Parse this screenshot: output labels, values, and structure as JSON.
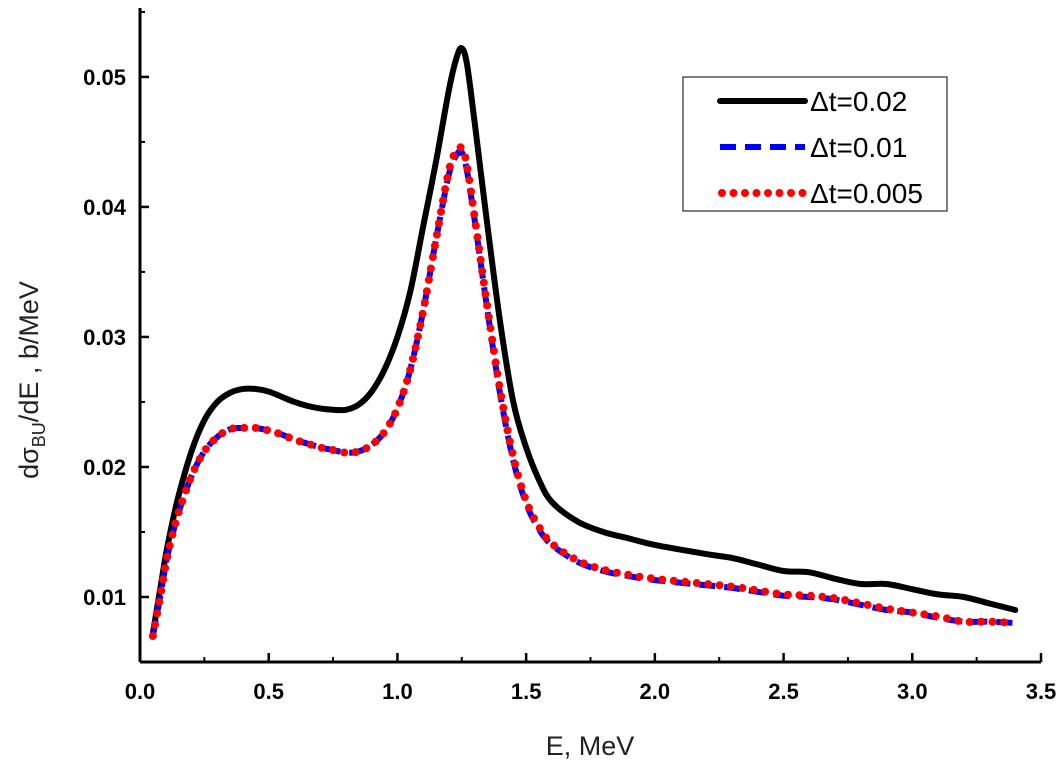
{
  "chart_data": {
    "type": "line",
    "xlabel": "E, MeV",
    "ylabel": {
      "main": "dσ",
      "sub": "BU",
      "rest": "/dE , b/MeV"
    },
    "xlim": [
      0.0,
      3.5
    ],
    "ylim": [
      0.005,
      0.0553
    ],
    "x_ticks": [
      "0.0",
      "0.5",
      "1.0",
      "1.5",
      "2.0",
      "2.5",
      "3.0",
      "3.5"
    ],
    "y_ticks": [
      "0.01",
      "0.02",
      "0.03",
      "0.04",
      "0.05"
    ],
    "grid": false,
    "legend_position": "top-right",
    "series": [
      {
        "name": "Δt=0.02",
        "style": "solid",
        "color": "#000000",
        "x": [
          0.05,
          0.08,
          0.1,
          0.12,
          0.15,
          0.2,
          0.25,
          0.3,
          0.35,
          0.4,
          0.45,
          0.5,
          0.55,
          0.6,
          0.65,
          0.7,
          0.75,
          0.8,
          0.85,
          0.9,
          0.95,
          1.0,
          1.05,
          1.1,
          1.15,
          1.2,
          1.23,
          1.25,
          1.27,
          1.3,
          1.35,
          1.4,
          1.45,
          1.5,
          1.55,
          1.6,
          1.7,
          1.8,
          1.9,
          2.0,
          2.2,
          2.3,
          2.4,
          2.5,
          2.6,
          2.7,
          2.8,
          2.9,
          3.0,
          3.1,
          3.2,
          3.3,
          3.4
        ],
        "y": [
          0.0072,
          0.0108,
          0.0132,
          0.0152,
          0.0178,
          0.0212,
          0.0236,
          0.025,
          0.0257,
          0.026,
          0.026,
          0.0258,
          0.0254,
          0.025,
          0.0247,
          0.0245,
          0.0244,
          0.0244,
          0.0248,
          0.0258,
          0.0275,
          0.03,
          0.0335,
          0.0385,
          0.0435,
          0.049,
          0.0515,
          0.0522,
          0.051,
          0.0465,
          0.0385,
          0.031,
          0.025,
          0.0215,
          0.019,
          0.0173,
          0.0158,
          0.015,
          0.0145,
          0.014,
          0.0133,
          0.013,
          0.0125,
          0.012,
          0.0119,
          0.0114,
          0.011,
          0.011,
          0.0106,
          0.0102,
          0.01,
          0.0095,
          0.009
        ]
      },
      {
        "name": "Δt=0.01",
        "style": "dashed",
        "color": "#0000ff",
        "x": [
          0.05,
          0.08,
          0.1,
          0.12,
          0.15,
          0.2,
          0.25,
          0.3,
          0.35,
          0.4,
          0.45,
          0.5,
          0.55,
          0.6,
          0.65,
          0.7,
          0.75,
          0.8,
          0.85,
          0.9,
          0.95,
          1.0,
          1.05,
          1.1,
          1.15,
          1.2,
          1.23,
          1.25,
          1.27,
          1.3,
          1.35,
          1.4,
          1.45,
          1.5,
          1.55,
          1.6,
          1.7,
          1.8,
          1.9,
          2.0,
          2.2,
          2.3,
          2.4,
          2.5,
          2.6,
          2.7,
          2.8,
          2.9,
          3.0,
          3.1,
          3.2,
          3.3,
          3.4
        ],
        "y": [
          0.007,
          0.0102,
          0.0125,
          0.0143,
          0.0165,
          0.0193,
          0.0212,
          0.0223,
          0.0229,
          0.023,
          0.023,
          0.0228,
          0.0225,
          0.0221,
          0.0218,
          0.0215,
          0.0213,
          0.0211,
          0.0212,
          0.0217,
          0.0227,
          0.0245,
          0.0275,
          0.032,
          0.0375,
          0.0425,
          0.044,
          0.0442,
          0.0428,
          0.039,
          0.032,
          0.0255,
          0.0205,
          0.0172,
          0.0152,
          0.014,
          0.0127,
          0.012,
          0.0116,
          0.0113,
          0.0109,
          0.0107,
          0.0104,
          0.0101,
          0.01,
          0.0098,
          0.0094,
          0.009,
          0.0088,
          0.0084,
          0.0081,
          0.0081,
          0.008
        ]
      },
      {
        "name": "Δt=0.005",
        "style": "dotted",
        "color": "#ff0000",
        "x": [
          0.05,
          0.08,
          0.1,
          0.12,
          0.15,
          0.2,
          0.25,
          0.3,
          0.35,
          0.4,
          0.45,
          0.5,
          0.55,
          0.6,
          0.65,
          0.7,
          0.75,
          0.8,
          0.85,
          0.9,
          0.95,
          1.0,
          1.05,
          1.1,
          1.15,
          1.2,
          1.23,
          1.25,
          1.27,
          1.3,
          1.35,
          1.4,
          1.45,
          1.5,
          1.55,
          1.6,
          1.7,
          1.8,
          1.9,
          2.0,
          2.2,
          2.3,
          2.4,
          2.5,
          2.6,
          2.7,
          2.8,
          2.9,
          3.0,
          3.1,
          3.2,
          3.3,
          3.4
        ],
        "y": [
          0.007,
          0.0102,
          0.0125,
          0.0143,
          0.0165,
          0.0193,
          0.0212,
          0.0223,
          0.0229,
          0.023,
          0.023,
          0.0228,
          0.0225,
          0.0221,
          0.0218,
          0.0215,
          0.0213,
          0.0211,
          0.0212,
          0.0217,
          0.0227,
          0.0245,
          0.0275,
          0.032,
          0.0375,
          0.0428,
          0.0443,
          0.0445,
          0.0432,
          0.0392,
          0.0322,
          0.0258,
          0.0208,
          0.0174,
          0.0154,
          0.0141,
          0.0128,
          0.0121,
          0.0117,
          0.0114,
          0.011,
          0.0108,
          0.0105,
          0.0102,
          0.0101,
          0.0099,
          0.0095,
          0.0091,
          0.0088,
          0.0085,
          0.0081,
          0.0081,
          0.008
        ]
      }
    ]
  }
}
